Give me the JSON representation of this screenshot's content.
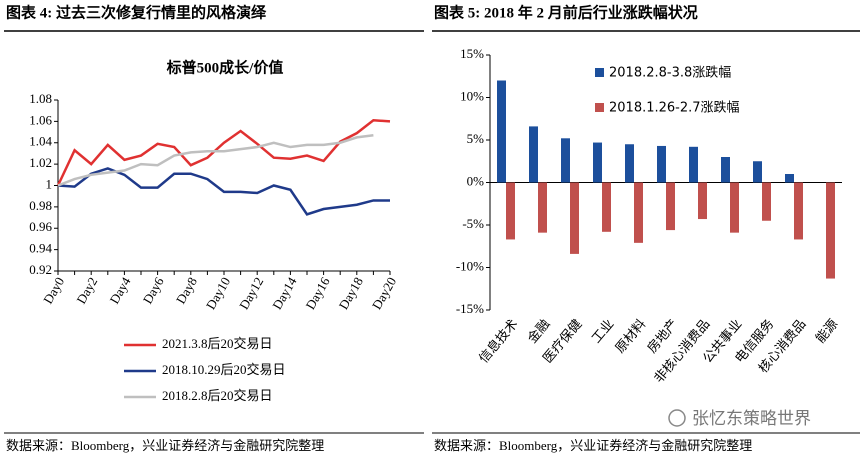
{
  "watermark": "张忆东策略世界",
  "chart_data": [
    {
      "type": "line",
      "caption": "图表 4:  过去三次修复行情里的风格演绎",
      "title": "标普500成长/价值",
      "source": "数据来源：Bloomberg，兴业证券经济与金融研究院整理",
      "categories": [
        "Day0",
        null,
        "Day2",
        null,
        "Day4",
        null,
        "Day6",
        null,
        "Day8",
        null,
        "Day10",
        null,
        "Day12",
        null,
        "Day14",
        null,
        "Day16",
        null,
        "Day18",
        null,
        "Day20"
      ],
      "ylim": [
        0.92,
        1.08
      ],
      "yticks": [
        0.92,
        0.94,
        0.96,
        0.98,
        1,
        1.02,
        1.04,
        1.06,
        1.08
      ],
      "legend": "bottom",
      "grid": false,
      "series": [
        {
          "name": "2021.3.8后20交易日",
          "color": "#e03131",
          "values": [
            1.0,
            1.033,
            1.02,
            1.038,
            1.024,
            1.028,
            1.039,
            1.036,
            1.019,
            1.026,
            1.04,
            1.051,
            1.039,
            1.026,
            1.025,
            1.028,
            1.023,
            1.041,
            1.049,
            1.061,
            1.06
          ]
        },
        {
          "name": "2018.10.29后20交易日",
          "color": "#1f3a8a",
          "values": [
            1.0,
            0.999,
            1.011,
            1.016,
            1.01,
            0.998,
            0.998,
            1.011,
            1.011,
            1.006,
            0.994,
            0.994,
            0.993,
            1.0,
            0.996,
            0.973,
            0.978,
            0.98,
            0.982,
            0.986,
            0.986
          ]
        },
        {
          "name": "2018.2.8后20交易日",
          "color": "#bfbfbf",
          "values": [
            1.0,
            1.006,
            1.01,
            1.012,
            1.014,
            1.02,
            1.019,
            1.028,
            1.031,
            1.032,
            1.032,
            1.034,
            1.036,
            1.04,
            1.036,
            1.038,
            1.038,
            1.04,
            1.045,
            1.047,
            null
          ]
        }
      ]
    },
    {
      "type": "bar",
      "caption": "图表 5:  2018 年 2 月前后行业涨跌幅状况",
      "source": "数据来源：Bloomberg，兴业证券经济与金融研究院整理",
      "categories": [
        "信息技术",
        "金融",
        "医疗保健",
        "工业",
        "原材料",
        "房地产",
        "非核心消费品",
        "公共事业",
        "电信服务",
        "核心消费品",
        "能源"
      ],
      "ylim": [
        -15,
        15
      ],
      "yticks": [
        {
          "value": -15,
          "label": "-15%"
        },
        {
          "value": -10,
          "label": "-10%"
        },
        {
          "value": -5,
          "label": "-5%"
        },
        {
          "value": 0,
          "label": "0%"
        },
        {
          "value": 5,
          "label": "5%"
        },
        {
          "value": 10,
          "label": "10%"
        },
        {
          "value": 15,
          "label": "15%"
        }
      ],
      "legend": "top",
      "grid": false,
      "series": [
        {
          "name": "2018.2.8-3.8涨跌幅",
          "color": "#1c4f9c",
          "values": [
            12.0,
            6.6,
            5.2,
            4.7,
            4.5,
            4.3,
            4.2,
            3.0,
            2.5,
            1.0,
            null
          ]
        },
        {
          "name": "2018.1.26-2.7涨跌幅",
          "color": "#c0504d",
          "values": [
            -6.7,
            -5.9,
            -8.4,
            -5.8,
            -7.1,
            -5.6,
            -4.3,
            -5.9,
            -4.5,
            -6.7,
            -11.3
          ]
        }
      ]
    }
  ]
}
